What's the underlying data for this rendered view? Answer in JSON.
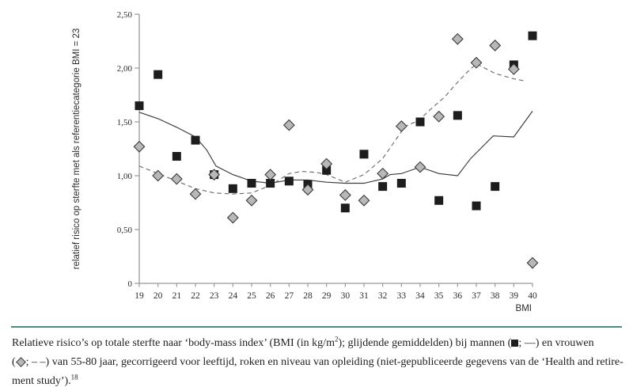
{
  "colors": {
    "rule": "#4a8c7d",
    "men_marker": "#1d1d1d",
    "women_fill": "#b8b8b8",
    "women_stroke": "#3a3a3a",
    "men_trend": "#3c3c3c",
    "women_trend": "#6e6e6e",
    "axis": "#999999",
    "text": "#2b2b2b"
  },
  "chart_data": {
    "type": "scatter",
    "title": "",
    "xlabel": "BMI",
    "ylabel": "relatief risico op sterfte met als referentiecategorie BMI = 23",
    "xlim": [
      19,
      40
    ],
    "ylim": [
      0,
      2.5
    ],
    "grid": false,
    "legend_position": "none",
    "yticks": [
      {
        "v": 0,
        "label": "0"
      },
      {
        "v": 0.5,
        "label": "0,50"
      },
      {
        "v": 1.0,
        "label": "1,00"
      },
      {
        "v": 1.5,
        "label": "1,50"
      },
      {
        "v": 2.0,
        "label": "2,00"
      },
      {
        "v": 2.5,
        "label": "2,50"
      }
    ],
    "xticks": [
      {
        "v": 19,
        "label": "19"
      },
      {
        "v": 20,
        "label": "20"
      },
      {
        "v": 21,
        "label": "21"
      },
      {
        "v": 22,
        "label": "22"
      },
      {
        "v": 23,
        "label": "23"
      },
      {
        "v": 24,
        "label": "24"
      },
      {
        "v": 25,
        "label": "25"
      },
      {
        "v": 26,
        "label": "26"
      },
      {
        "v": 27,
        "label": "27"
      },
      {
        "v": 28,
        "label": "28"
      },
      {
        "v": 29,
        "label": "29"
      },
      {
        "v": 30,
        "label": "30"
      },
      {
        "v": 31,
        "label": "31"
      },
      {
        "v": 32,
        "label": "32"
      },
      {
        "v": 33,
        "label": "33"
      },
      {
        "v": 34,
        "label": "34"
      },
      {
        "v": 35,
        "label": "35"
      },
      {
        "v": 36,
        "label": "36"
      },
      {
        "v": 37,
        "label": "37"
      },
      {
        "v": 38,
        "label": "38"
      },
      {
        "v": 39,
        "label": "39"
      },
      {
        "v": 40,
        "label": "40"
      }
    ],
    "series": [
      {
        "name": "mannen",
        "marker": "square",
        "line_style": "solid",
        "points": [
          [
            19,
            1.65
          ],
          [
            20,
            1.94
          ],
          [
            21,
            1.18
          ],
          [
            22,
            1.33
          ],
          [
            23,
            1.01
          ],
          [
            24,
            0.88
          ],
          [
            25,
            0.93
          ],
          [
            26,
            0.93
          ],
          [
            27,
            0.95
          ],
          [
            28,
            0.92
          ],
          [
            29,
            1.05
          ],
          [
            30,
            0.7
          ],
          [
            31,
            1.2
          ],
          [
            32,
            0.9
          ],
          [
            33,
            0.93
          ],
          [
            34,
            1.5
          ],
          [
            35,
            0.77
          ],
          [
            36,
            1.56
          ],
          [
            37,
            0.72
          ],
          [
            38,
            0.9
          ],
          [
            39,
            2.03
          ],
          [
            40,
            2.3
          ]
        ],
        "moving_average": [
          [
            19,
            1.59
          ],
          [
            20,
            1.53
          ],
          [
            21,
            1.45
          ],
          [
            22,
            1.36
          ],
          [
            22.6,
            1.24
          ],
          [
            23.1,
            1.09
          ],
          [
            24,
            1.01
          ],
          [
            25,
            0.95
          ],
          [
            26,
            0.93
          ],
          [
            27,
            0.96
          ],
          [
            28,
            0.96
          ],
          [
            29,
            0.94
          ],
          [
            30,
            0.93
          ],
          [
            31,
            0.93
          ],
          [
            32,
            0.97
          ],
          [
            32.4,
            1.01
          ],
          [
            33,
            1.02
          ],
          [
            34,
            1.08
          ],
          [
            35,
            1.02
          ],
          [
            36,
            1.0
          ],
          [
            36.7,
            1.16
          ],
          [
            37.9,
            1.37
          ],
          [
            39,
            1.36
          ],
          [
            40,
            1.6
          ]
        ]
      },
      {
        "name": "vrouwen",
        "marker": "diamond",
        "line_style": "dashed",
        "points": [
          [
            19,
            1.27
          ],
          [
            20,
            1.0
          ],
          [
            21,
            0.97
          ],
          [
            22,
            0.83
          ],
          [
            23,
            1.01
          ],
          [
            24,
            0.61
          ],
          [
            25,
            0.77
          ],
          [
            26,
            1.01
          ],
          [
            27,
            1.47
          ],
          [
            28,
            0.87
          ],
          [
            29,
            1.11
          ],
          [
            30,
            0.82
          ],
          [
            31,
            0.77
          ],
          [
            32,
            1.02
          ],
          [
            33,
            1.46
          ],
          [
            34,
            1.08
          ],
          [
            35,
            1.55
          ],
          [
            36,
            2.27
          ],
          [
            37,
            2.05
          ],
          [
            38,
            2.21
          ],
          [
            39,
            1.99
          ],
          [
            40,
            0.19
          ]
        ],
        "moving_average": [
          [
            19,
            1.09
          ],
          [
            20,
            1.02
          ],
          [
            21,
            0.95
          ],
          [
            22,
            0.88
          ],
          [
            23,
            0.84
          ],
          [
            24,
            0.83
          ],
          [
            25,
            0.84
          ],
          [
            26,
            0.91
          ],
          [
            27,
            1.02
          ],
          [
            27.7,
            1.04
          ],
          [
            28.5,
            1.03
          ],
          [
            29,
            1.01
          ],
          [
            30,
            0.94
          ],
          [
            31,
            1.01
          ],
          [
            32,
            1.16
          ],
          [
            32.6,
            1.31
          ],
          [
            33.2,
            1.46
          ],
          [
            33.9,
            1.51
          ],
          [
            34.7,
            1.64
          ],
          [
            35.3,
            1.73
          ],
          [
            35.9,
            1.85
          ],
          [
            36.5,
            1.96
          ],
          [
            37,
            2.04
          ],
          [
            38,
            1.95
          ],
          [
            39,
            1.9
          ],
          [
            39.6,
            1.88
          ]
        ]
      }
    ]
  },
  "caption": {
    "lines": [
      [
        {
          "text": "Relatieve risico’s op totale sterfte naar ‘body-mass index’ (BMI (in kg/m"
        },
        {
          "sup": "2"
        },
        {
          "text": "); glijdende gemiddelden) bij mannen ("
        },
        {
          "marker": "square"
        },
        {
          "text": "; —) en vrouwen"
        }
      ],
      [
        {
          "text": "("
        },
        {
          "marker": "diamond"
        },
        {
          "text": "; – –) van 55-80 jaar, gecorrigeerd voor leeftijd, roken en niveau van opleiding (niet-gepubliceerde gegevens van de ‘Health and retire-"
        }
      ],
      [
        {
          "text": "ment study’)."
        },
        {
          "sup": "18"
        }
      ]
    ]
  }
}
